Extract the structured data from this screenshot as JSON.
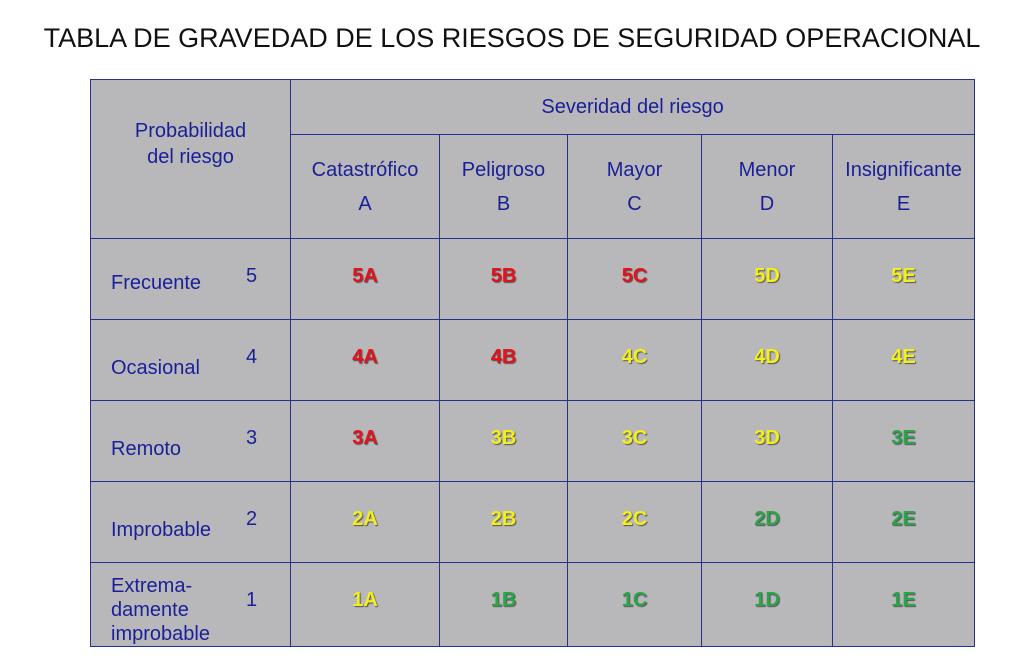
{
  "title": "TABLA DE GRAVEDAD DE LOS RIESGOS DE SEGURIDAD OPERACIONAL",
  "header": {
    "probability_label_line1": "Probabilidad",
    "probability_label_line2": "del riesgo",
    "severity_label": "Severidad del riesgo",
    "columns": [
      {
        "name": "Catastrófico",
        "letter": "A"
      },
      {
        "name": "Peligroso",
        "letter": "B"
      },
      {
        "name": "Mayor",
        "letter": "C"
      },
      {
        "name": "Menor",
        "letter": "D"
      },
      {
        "name": "Insignificante",
        "letter": "E"
      }
    ]
  },
  "rows": [
    {
      "name": "Frecuente",
      "number": "5",
      "cells": [
        "5A",
        "5B",
        "5C",
        "5D",
        "5E"
      ]
    },
    {
      "name": "Ocasional",
      "number": "4",
      "cells": [
        "4A",
        "4B",
        "4C",
        "4D",
        "4E"
      ]
    },
    {
      "name": "Remoto",
      "number": "3",
      "cells": [
        "3A",
        "3B",
        "3C",
        "3D",
        "3E"
      ]
    },
    {
      "name": "Improbable",
      "number": "2",
      "cells": [
        "2A",
        "2B",
        "2C",
        "2D",
        "2E"
      ]
    },
    {
      "name": "Extrema-damente improbable",
      "name_lines": [
        "Extrema-",
        "damente",
        "improbable"
      ],
      "number": "1",
      "cells": [
        "1A",
        "1B",
        "1C",
        "1D",
        "1E"
      ]
    }
  ],
  "colors": {
    "red": "#e3121b",
    "yellow": "#f2ef1c",
    "green": "#2da34a",
    "table_background": "#b8b8bb",
    "border": "#25308f",
    "header_text": "#1a1f97"
  },
  "cell_colors": [
    [
      "red",
      "red",
      "red",
      "yellow",
      "yellow"
    ],
    [
      "red",
      "red",
      "yellow",
      "yellow",
      "yellow"
    ],
    [
      "red",
      "yellow",
      "yellow",
      "yellow",
      "green"
    ],
    [
      "yellow",
      "yellow",
      "yellow",
      "green",
      "green"
    ],
    [
      "yellow",
      "green",
      "green",
      "green",
      "green"
    ]
  ]
}
